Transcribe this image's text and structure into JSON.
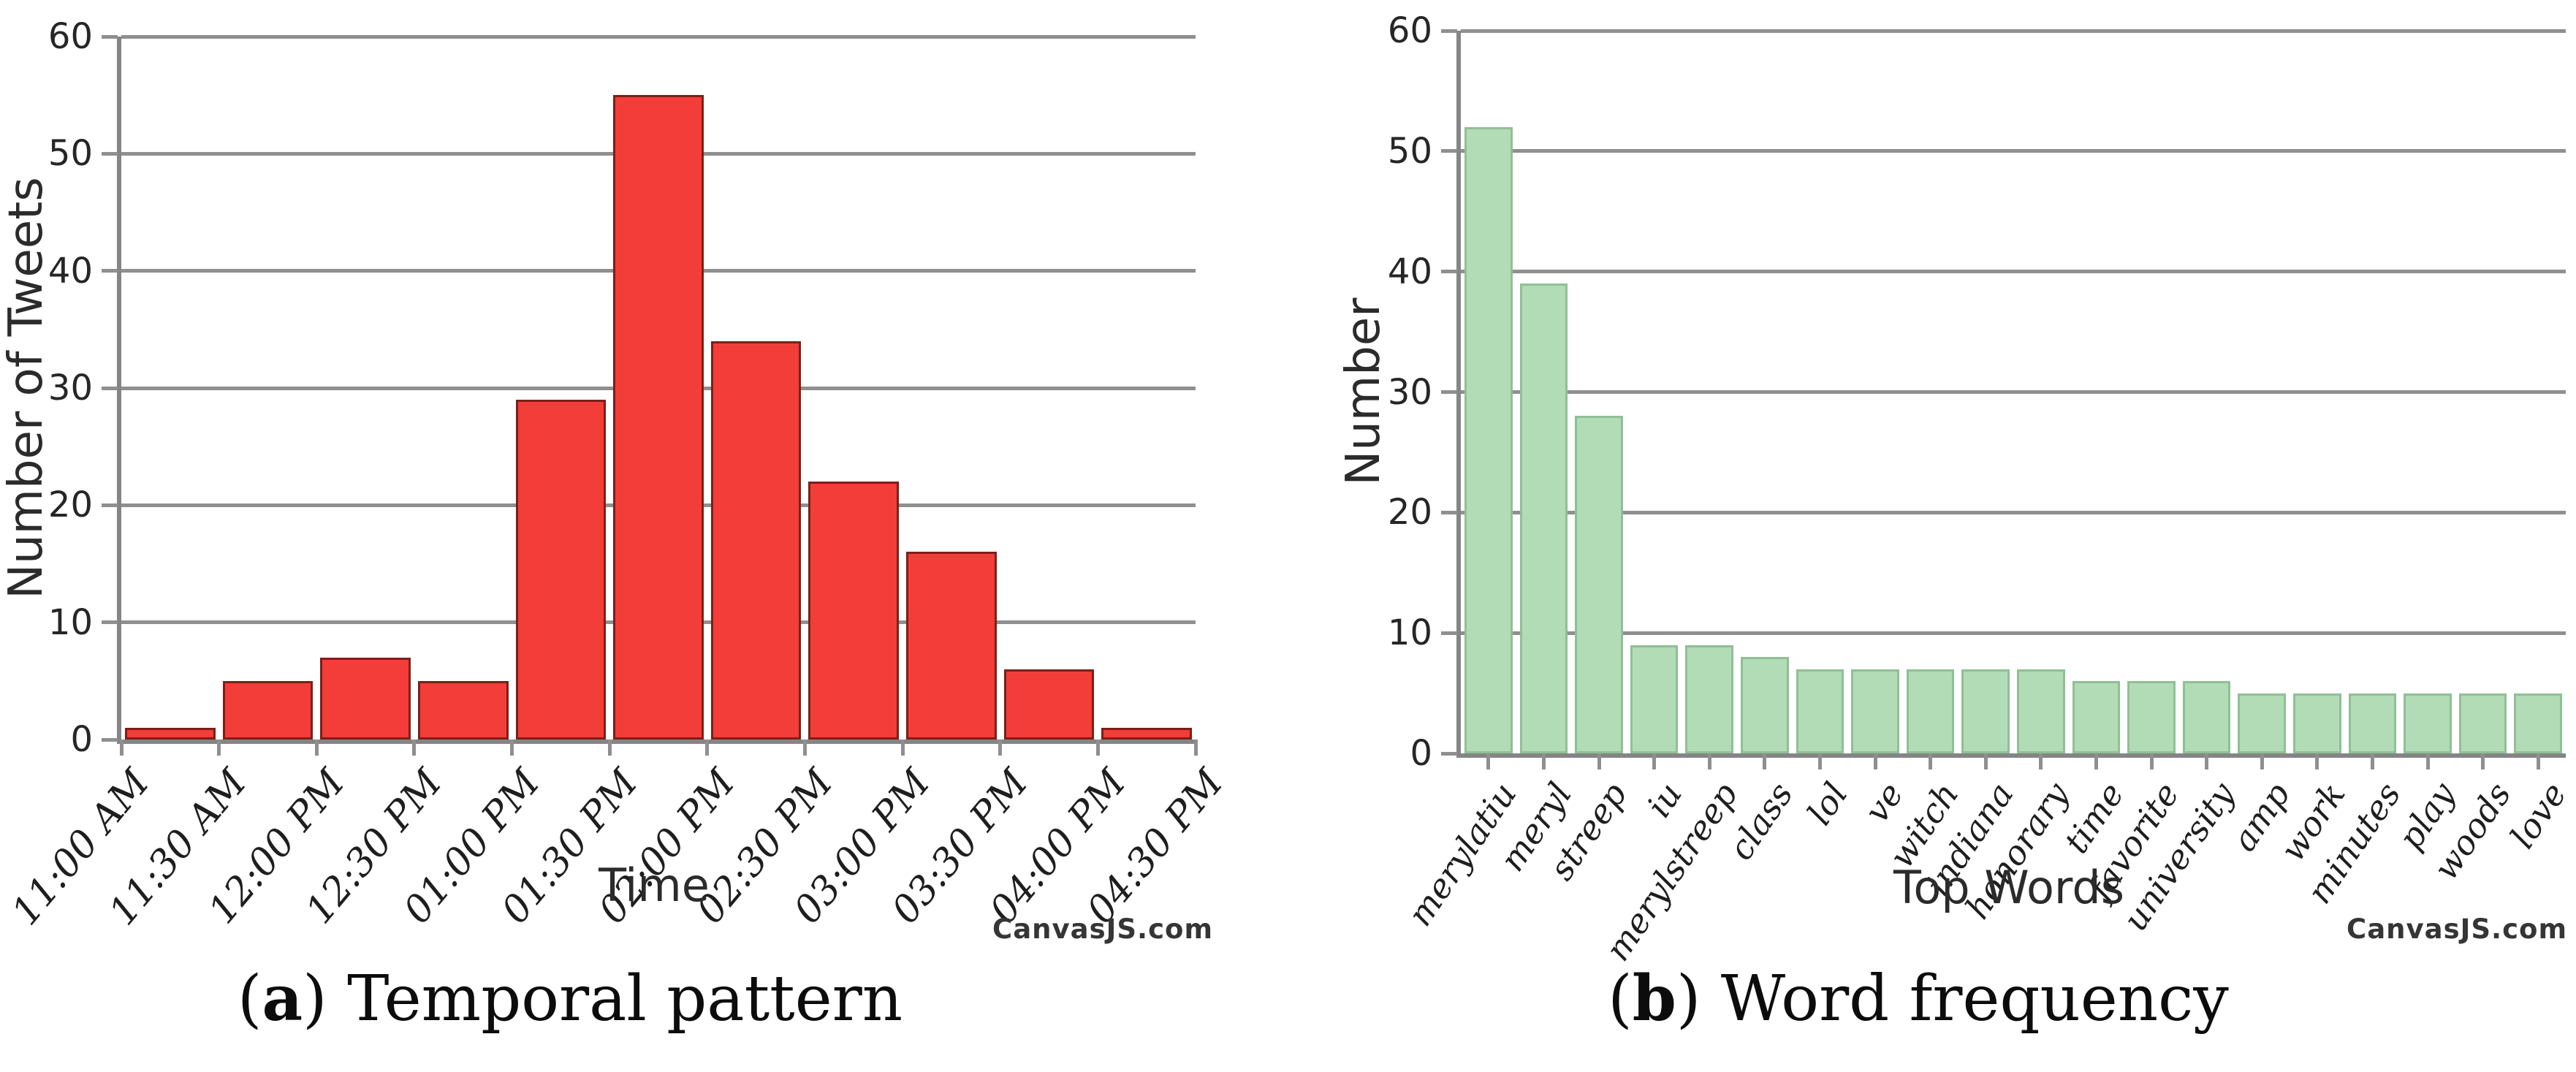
{
  "captions": {
    "a": {
      "open": "(",
      "letter": "a",
      "close": ")",
      "text": "Temporal pattern"
    },
    "b": {
      "open": "(",
      "letter": "b",
      "close": ")",
      "text": "Word frequency"
    }
  },
  "chart_data": [
    {
      "type": "bar",
      "panel": "a",
      "title": "",
      "xlabel": "Time",
      "ylabel": "Number of Tweets",
      "ylim": [
        0,
        60
      ],
      "yticks": [
        0,
        10,
        20,
        30,
        40,
        50,
        60
      ],
      "grid": true,
      "legend": "none",
      "x_mode": "bin-edges",
      "bin_edge_labels": [
        "11:00 AM",
        "11:30 AM",
        "12:00 PM",
        "12:30 PM",
        "01:00 PM",
        "01:30 PM",
        "02:00 PM",
        "02:30 PM",
        "03:00 PM",
        "03:30 PM",
        "04:00 PM",
        "04:30 PM"
      ],
      "values": [
        1,
        5,
        7,
        5,
        29,
        55,
        34,
        22,
        16,
        6,
        1
      ],
      "bar_color": "#f23d38",
      "bar_border_color": "#7d1f18",
      "watermark": "CanvasJS.com"
    },
    {
      "type": "bar",
      "panel": "b",
      "title": "",
      "xlabel": "Top Words",
      "ylabel": "Number",
      "ylim": [
        0,
        60
      ],
      "yticks": [
        0,
        10,
        20,
        30,
        40,
        50,
        60
      ],
      "grid": true,
      "legend": "none",
      "x_mode": "categories",
      "categories": [
        "merylatiu",
        "meryl",
        "streep",
        "iu",
        "merylstreep",
        "class",
        "lol",
        "ve",
        "witch",
        "indiana",
        "honorary",
        "time",
        "favorite",
        "university",
        "amp",
        "work",
        "minutes",
        "play",
        "woods",
        "love"
      ],
      "values": [
        52,
        39,
        28,
        9,
        9,
        8,
        7,
        7,
        7,
        7,
        7,
        6,
        6,
        6,
        5,
        5,
        5,
        5,
        5,
        5
      ],
      "bar_color": "#b2dcb5",
      "bar_border_color": "#90bf97",
      "watermark": "CanvasJS.com"
    }
  ]
}
